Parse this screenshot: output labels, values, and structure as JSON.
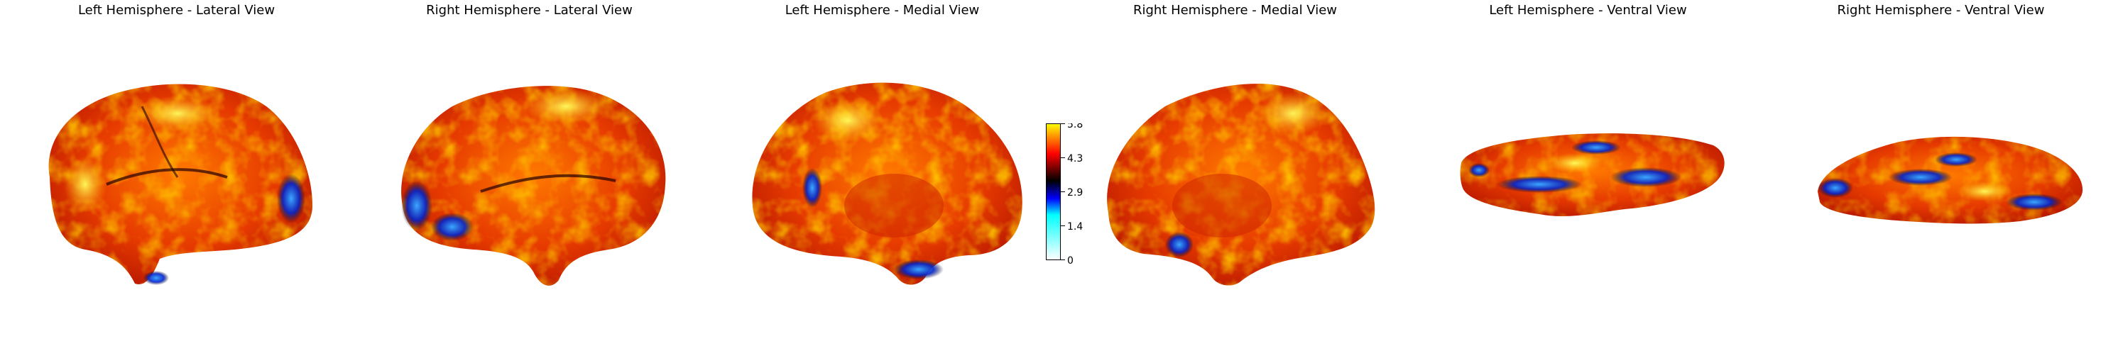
{
  "panels": [
    {
      "title": "Left Hemisphere - Lateral View"
    },
    {
      "title": "Right Hemisphere - Lateral View"
    },
    {
      "title": "Left Hemisphere - Medial View"
    },
    {
      "title": "Right Hemisphere - Medial View"
    },
    {
      "title": "Left Hemisphere - Ventral View"
    },
    {
      "title": "Right Hemisphere - Ventral View"
    }
  ],
  "colorbar": {
    "ticks": [
      "5.8",
      "4.3",
      "2.9",
      "1.4",
      "0"
    ],
    "range": [
      0,
      5.8
    ],
    "colormap": [
      "#ffffff",
      "#00ffff",
      "#0000ff",
      "#000000",
      "#ff0000",
      "#ffff00"
    ]
  }
}
